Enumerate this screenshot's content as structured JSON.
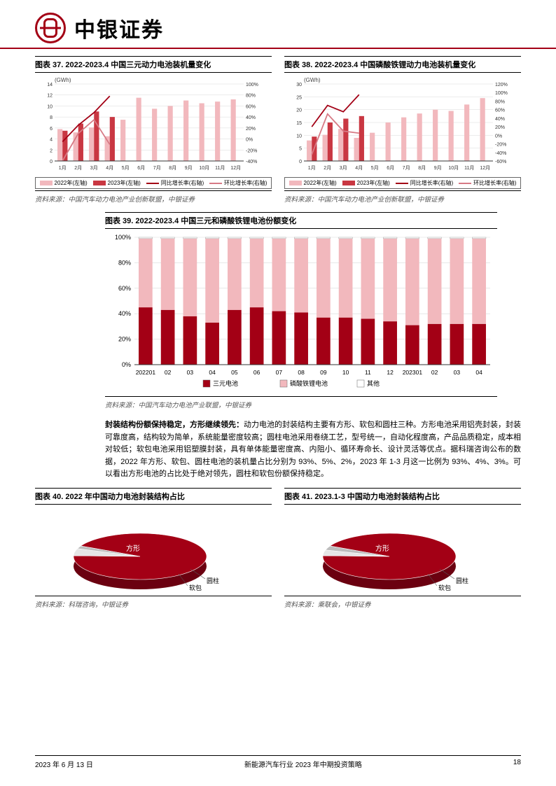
{
  "header": {
    "brand": "中银证券"
  },
  "footer": {
    "date": "2023 年 6 月 13 日",
    "title": "新能源汽车行业 2023 年中期投资策略",
    "page": "18"
  },
  "chart37": {
    "title": "图表 37. 2022-2023.4 中国三元动力电池装机量变化",
    "unit": "(GWh)",
    "months": [
      "1月",
      "2月",
      "3月",
      "4月",
      "5月",
      "6月",
      "7月",
      "8月",
      "9月",
      "10月",
      "11月",
      "12月"
    ],
    "bars2022": [
      5.8,
      5.2,
      6.1,
      4.5,
      7.5,
      11.5,
      9.5,
      10.0,
      11.0,
      10.5,
      10.8,
      11.2
    ],
    "bars2023": [
      5.5,
      6.8,
      9.0,
      8.0
    ],
    "lineYoY": [
      -5,
      25,
      48,
      78
    ],
    "lineMoM": [
      -40,
      10,
      35,
      -10
    ],
    "yLeft": [
      0,
      2,
      4,
      6,
      8,
      10,
      12,
      14
    ],
    "yRight": [
      "-40%",
      "-20%",
      "0%",
      "20%",
      "40%",
      "60%",
      "80%",
      "100%"
    ],
    "colors": {
      "b2022": "#f2b8bd",
      "b2023": "#c93742",
      "yoy": "#a30015",
      "mom": "#d77a85",
      "grid": "#d9d9d9"
    },
    "legend": [
      "2022年(左轴)",
      "2023年(左轴)",
      "同比增长率(右轴)",
      "环比增长率(右轴)"
    ],
    "source": "资料来源：中国汽车动力电池产业创新联盟，中银证券"
  },
  "chart38": {
    "title": "图表 38. 2022-2023.4 中国磷酸铁锂动力电池装机量变化",
    "unit": "(GWh)",
    "months": [
      "1月",
      "2月",
      "3月",
      "4月",
      "5月",
      "6月",
      "7月",
      "8月",
      "9月",
      "10月",
      "11月",
      "12月"
    ],
    "bars2022": [
      8.0,
      10.2,
      12.5,
      9.0,
      11.0,
      15.0,
      17.0,
      18.5,
      20.0,
      19.5,
      22.0,
      24.5
    ],
    "bars2023": [
      9.5,
      15.0,
      16.5,
      17.5
    ],
    "lineYoY": [
      20,
      70,
      55,
      95
    ],
    "lineMoM": [
      -45,
      50,
      10,
      5
    ],
    "yLeft": [
      0,
      5,
      10,
      15,
      20,
      25,
      30
    ],
    "yRight": [
      "-60%",
      "-40%",
      "-20%",
      "0%",
      "20%",
      "40%",
      "60%",
      "80%",
      "100%",
      "120%"
    ],
    "colors": {
      "b2022": "#f2b8bd",
      "b2023": "#c93742",
      "yoy": "#a30015",
      "mom": "#d77a85",
      "grid": "#d9d9d9"
    },
    "legend": [
      "2022年(左轴)",
      "2023年(左轴)",
      "同比增长率(右轴)",
      "环比增长率(右轴)"
    ],
    "source": "资料来源：中国汽车动力电池产业创新联盟，中银证券"
  },
  "chart39": {
    "title": "图表 39. 2022-2023.4 中国三元和磷酸铁锂电池份额变化",
    "xlabels": [
      "202201",
      "02",
      "03",
      "04",
      "05",
      "06",
      "07",
      "08",
      "09",
      "10",
      "11",
      "12",
      "202301",
      "02",
      "03",
      "04"
    ],
    "sanyuan": [
      45,
      43,
      38,
      33,
      43,
      45,
      42,
      41,
      37,
      37,
      36,
      34,
      31,
      32,
      32,
      32
    ],
    "lfp": [
      54,
      56,
      61,
      66,
      56,
      54,
      57,
      58,
      62,
      62,
      63,
      65,
      68,
      67,
      67,
      67
    ],
    "other": [
      1,
      1,
      1,
      1,
      1,
      1,
      1,
      1,
      1,
      1,
      1,
      1,
      1,
      1,
      1,
      1
    ],
    "yticks": [
      "0%",
      "20%",
      "40%",
      "60%",
      "80%",
      "100%"
    ],
    "colors": {
      "sanyuan": "#a30015",
      "lfp": "#f2b8bd",
      "other": "#ffffff",
      "border": "#666",
      "grid": "#d9d9d9"
    },
    "legend": [
      "三元电池",
      "磷酸铁锂电池",
      "其他"
    ],
    "source": "资料来源：中国汽车动力电池产业联盟，中银证券"
  },
  "bodytext": "封装结构份额保持稳定，方形继续领先：动力电池的封装结构主要有方形、软包和圆柱三种。方形电池采用铝壳封装，封装可靠度高，结构较为简单，系统能量密度较高；圆柱电池采用卷绕工艺，型号统一，自动化程度高，产品品质稳定，成本相对较低；软包电池采用铝塑膜封装，具有单体能量密度高、内阻小、循环寿命长、设计灵活等优点。据科瑞咨询公布的数据，2022 年方形、软包、圆柱电池的装机量占比分别为 93%、5%、2%，2023 年 1-3 月这一比例为 93%、4%、3%。可以看出方形电池的占比处于绝对领先，圆柱和软包份额保持稳定。",
  "chart40": {
    "title": "图表 40. 2022 年中国动力电池封装结构占比",
    "slices": [
      {
        "label": "方形",
        "value": 93,
        "color": "#a30015"
      },
      {
        "label": "软包",
        "value": 5,
        "color": "#e6e6e6"
      },
      {
        "label": "圆柱",
        "value": 2,
        "color": "#bdbdbd"
      }
    ],
    "source": "资料来源：科瑞咨询，中银证券"
  },
  "chart41": {
    "title": "图表 41. 2023.1-3 中国动力电池封装结构占比",
    "slices": [
      {
        "label": "方形",
        "value": 93,
        "color": "#a30015"
      },
      {
        "label": "软包",
        "value": 4,
        "color": "#e6e6e6"
      },
      {
        "label": "圆柱",
        "value": 3,
        "color": "#bdbdbd"
      }
    ],
    "source": "资料来源：乘联会，中银证券"
  }
}
